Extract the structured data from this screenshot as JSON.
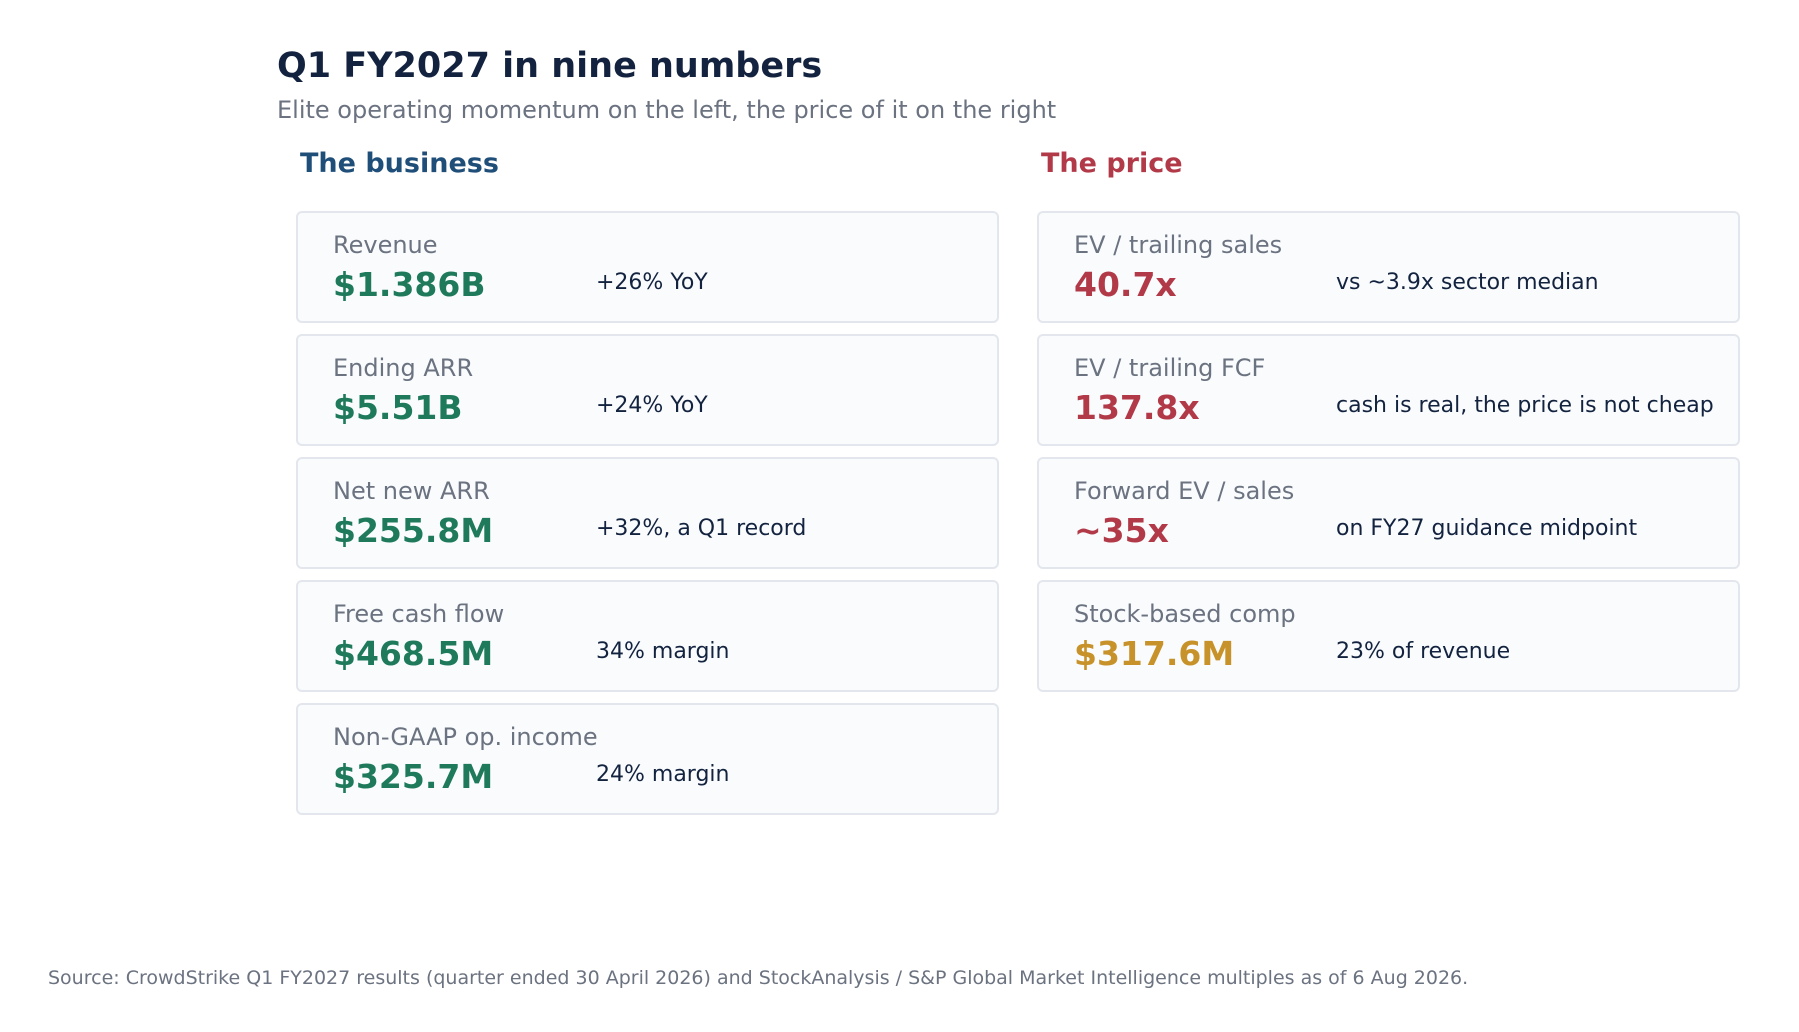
{
  "header": {
    "title": "Q1 FY2027 in nine numbers",
    "subtitle": "Elite operating momentum on the left, the price of it on the right"
  },
  "business": {
    "heading": "The business",
    "heading_color": "#1f4e79",
    "cards": [
      {
        "label": "Revenue",
        "value": "$1.386B",
        "note": "+26% YoY",
        "color": "#1e7a5a"
      },
      {
        "label": "Ending ARR",
        "value": "$5.51B",
        "note": "+24% YoY",
        "color": "#1e7a5a"
      },
      {
        "label": "Net new ARR",
        "value": "$255.8M",
        "note": "+32%, a Q1 record",
        "color": "#1e7a5a"
      },
      {
        "label": "Free cash flow",
        "value": "$468.5M",
        "note": "34% margin",
        "color": "#1e7a5a"
      },
      {
        "label": "Non-GAAP op. income",
        "value": "$325.7M",
        "note": "24% margin",
        "color": "#1e7a5a"
      }
    ]
  },
  "price": {
    "heading": "The price",
    "heading_color": "#b23a48",
    "cards": [
      {
        "label": "EV / trailing sales",
        "value": "40.7x",
        "note": "vs ~3.9x sector median",
        "color": "#b23a48"
      },
      {
        "label": "EV / trailing FCF",
        "value": "137.8x",
        "note": "cash is real, the price is not cheap",
        "color": "#b23a48"
      },
      {
        "label": "Forward EV / sales",
        "value": "~35x",
        "note": "on FY27 guidance midpoint",
        "color": "#b23a48"
      },
      {
        "label": "Stock-based comp",
        "value": "$317.6M",
        "note": "23% of revenue",
        "color": "#c8922a"
      }
    ]
  },
  "footer": {
    "source": "Source: CrowdStrike Q1 FY2027 results (quarter ended 30 April 2026) and StockAnalysis / S&P Global Market Intelligence multiples as of 6 Aug 2026."
  }
}
